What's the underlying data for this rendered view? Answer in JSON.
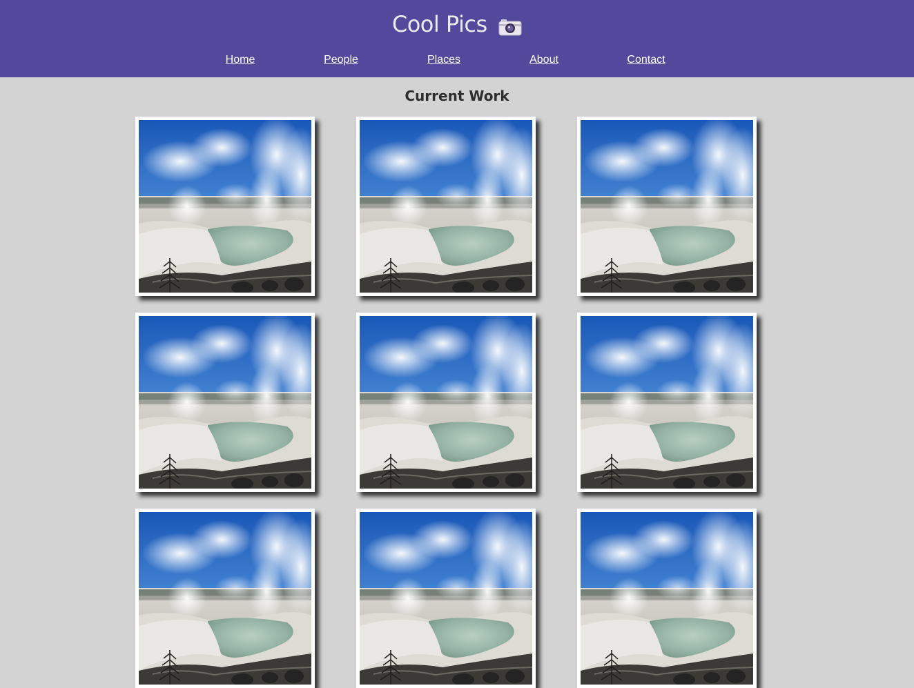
{
  "header": {
    "title": "Cool Pics",
    "icon": "camera-icon",
    "background_color": "#52489c"
  },
  "nav": {
    "items": [
      {
        "label": "Home"
      },
      {
        "label": "People"
      },
      {
        "label": "Places"
      },
      {
        "label": "About"
      },
      {
        "label": "Contact"
      }
    ]
  },
  "main": {
    "heading": "Current Work",
    "gallery": {
      "rows": 3,
      "columns": 3,
      "image_subject": "geyser-landscape",
      "photos": [
        {
          "id": 1
        },
        {
          "id": 2
        },
        {
          "id": 3
        },
        {
          "id": 4
        },
        {
          "id": 5
        },
        {
          "id": 6
        },
        {
          "id": 7
        },
        {
          "id": 8
        },
        {
          "id": 9
        }
      ]
    }
  },
  "colors": {
    "page_background": "#d3d3d3",
    "nav_text": "#ffffff",
    "title_text": "#ebebeb"
  }
}
